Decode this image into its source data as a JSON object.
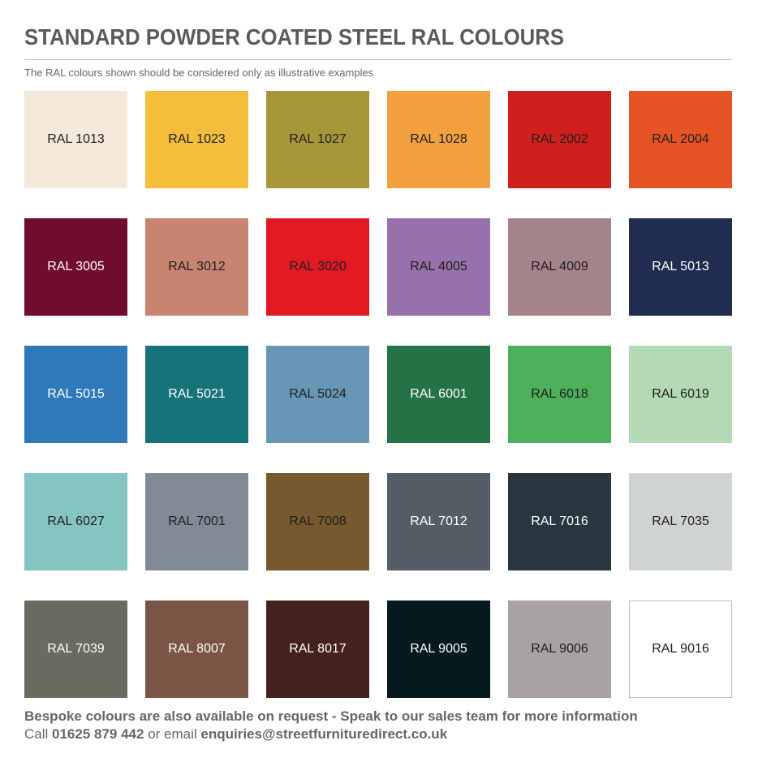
{
  "header": {
    "title": "STANDARD POWDER COATED STEEL RAL COLOURS",
    "subtitle": "The RAL colours shown should be considered only as illustrative examples"
  },
  "swatches": [
    {
      "label": "RAL 1013",
      "color": "#f3e8da",
      "text": "#1f1f1f"
    },
    {
      "label": "RAL 1023",
      "color": "#f4bd3b",
      "text": "#1f1f1f"
    },
    {
      "label": "RAL 1027",
      "color": "#a6963a",
      "text": "#1f1f1f"
    },
    {
      "label": "RAL 1028",
      "color": "#f2a13e",
      "text": "#1f1f1f"
    },
    {
      "label": "RAL 2002",
      "color": "#cf201d",
      "text": "#1f1f1f"
    },
    {
      "label": "RAL 2004",
      "color": "#e65324",
      "text": "#1f1f1f"
    },
    {
      "label": "RAL 3005",
      "color": "#700d2e",
      "text": "#ffffff"
    },
    {
      "label": "RAL 3012",
      "color": "#c98371",
      "text": "#1f1f1f"
    },
    {
      "label": "RAL 3020",
      "color": "#e21a23",
      "text": "#1f1f1f"
    },
    {
      "label": "RAL 4005",
      "color": "#9671ab",
      "text": "#1f1f1f"
    },
    {
      "label": "RAL 4009",
      "color": "#a5838a",
      "text": "#1f1f1f"
    },
    {
      "label": "RAL 5013",
      "color": "#202d51",
      "text": "#ffffff"
    },
    {
      "label": "RAL 5015",
      "color": "#2f79bb",
      "text": "#ffffff"
    },
    {
      "label": "RAL 5021",
      "color": "#167379",
      "text": "#ffffff"
    },
    {
      "label": "RAL 5024",
      "color": "#6796b6",
      "text": "#1f1f1f"
    },
    {
      "label": "RAL 6001",
      "color": "#257247",
      "text": "#ffffff"
    },
    {
      "label": "RAL 6018",
      "color": "#4fb05b",
      "text": "#1f1f1f"
    },
    {
      "label": "RAL 6019",
      "color": "#b3dab4",
      "text": "#1f1f1f"
    },
    {
      "label": "RAL 6027",
      "color": "#84c5c2",
      "text": "#1f1f1f"
    },
    {
      "label": "RAL 7001",
      "color": "#818b95",
      "text": "#1f1f1f"
    },
    {
      "label": "RAL 7008",
      "color": "#77592f",
      "text": "#1f1f1f"
    },
    {
      "label": "RAL 7012",
      "color": "#545d66",
      "text": "#ffffff"
    },
    {
      "label": "RAL 7016",
      "color": "#283640",
      "text": "#ffffff"
    },
    {
      "label": "RAL 7035",
      "color": "#cfd4d2",
      "text": "#1f1f1f"
    },
    {
      "label": "RAL 7039",
      "color": "#6b6a5f",
      "text": "#ffffff"
    },
    {
      "label": "RAL 8007",
      "color": "#7a5545",
      "text": "#ffffff"
    },
    {
      "label": "RAL 8017",
      "color": "#44211c",
      "text": "#ffffff"
    },
    {
      "label": "RAL 9005",
      "color": "#06191c",
      "text": "#ffffff"
    },
    {
      "label": "RAL 9006",
      "color": "#a8a3a2",
      "text": "#1f1f1f"
    },
    {
      "label": "RAL 9016",
      "color": "#ffffff",
      "text": "#1f1f1f",
      "bordered": true
    }
  ],
  "footer": {
    "line1": "Bespoke colours are also available on request - Speak to our sales team for more information",
    "call_prefix": "Call ",
    "phone": "01625 879 442",
    "email_prefix": " or email ",
    "email": "enquiries@streetfurnituredirect.co.uk"
  }
}
